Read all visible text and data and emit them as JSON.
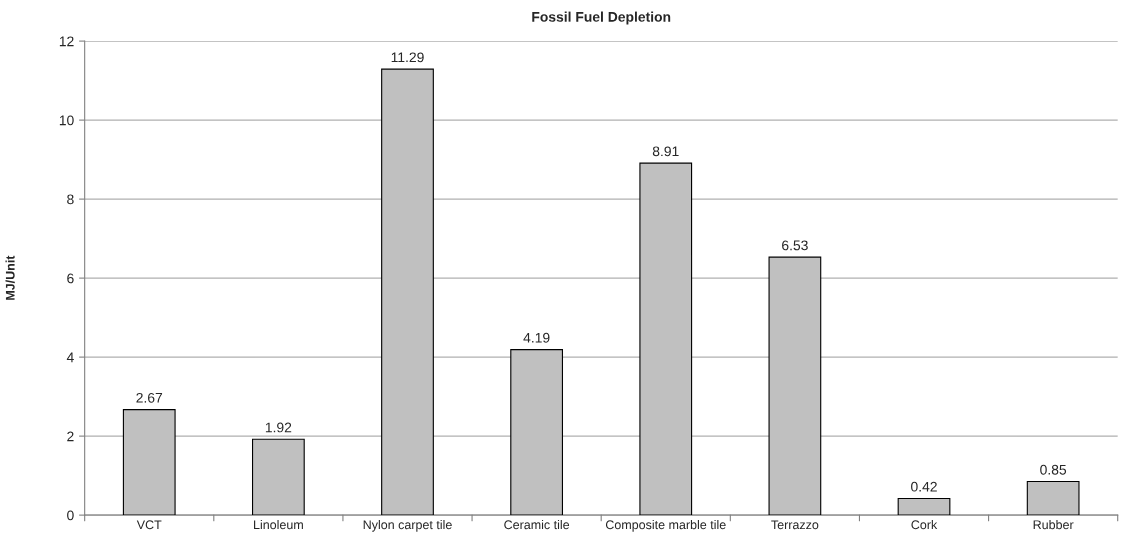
{
  "chart_data": {
    "type": "bar",
    "title": "Fossil Fuel Depletion",
    "ylabel": "MJ/Unit",
    "categories": [
      "VCT",
      "Linoleum",
      "Nylon carpet tile",
      "Ceramic tile",
      "Composite marble tile",
      "Terrazzo",
      "Cork",
      "Rubber"
    ],
    "values": [
      2.67,
      1.92,
      11.29,
      4.19,
      8.91,
      6.53,
      0.42,
      0.85
    ],
    "color": "#c0c0c0",
    "ylim": [
      0,
      12
    ],
    "yticks": [
      0,
      2,
      4,
      6,
      8,
      10,
      12
    ],
    "grid": "y",
    "data_labels": true,
    "legend": false
  }
}
